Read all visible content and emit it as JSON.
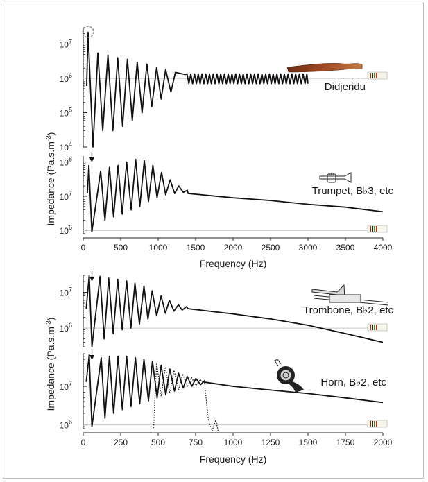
{
  "figure": {
    "ylabel_top": "Impedance (Pa.s.m",
    "ylabel_bottom": "Impedance (Pa.s.m",
    "ylabel_exponent": "-3",
    "ylabel_suffix": ")",
    "xlabel_top": "Frequency (Hz)",
    "xlabel_bottom": "Frequency (Hz)"
  },
  "chart_data": [
    {
      "type": "line",
      "panel": "didjeridu",
      "instrument_label": "Didjeridu",
      "icon": "didjeridu-icon",
      "yscale": "log",
      "ylim": [
        10000,
        30000000
      ],
      "xlim": [
        0,
        4000
      ],
      "y_ticks": [
        {
          "base": "10",
          "exp": "4",
          "value": 10000
        },
        {
          "base": "10",
          "exp": "5",
          "value": 100000
        },
        {
          "base": "10",
          "exp": "6",
          "value": 1000000
        },
        {
          "base": "10",
          "exp": "7",
          "value": 10000000
        }
      ],
      "series": [
        {
          "baseline": 1000000,
          "x_end": 3000,
          "f0": 65,
          "peaks": [
            [
              65,
              22000000
            ],
            [
              195,
              5500000
            ],
            [
              330,
              4800000
            ],
            [
              460,
              4000000
            ],
            [
              590,
              3600000
            ],
            [
              720,
              3000000
            ],
            [
              850,
              2600000
            ],
            [
              980,
              2100000
            ],
            [
              1100,
              1800000
            ],
            [
              1230,
              1500000
            ],
            [
              1360,
              1300000
            ]
          ],
          "troughs": [
            [
              130,
              10000
            ],
            [
              260,
              30000
            ],
            [
              395,
              30000
            ],
            [
              525,
              40000
            ],
            [
              655,
              60000
            ],
            [
              785,
              100000
            ],
            [
              915,
              150000
            ],
            [
              1040,
              250000
            ],
            [
              1170,
              400000
            ]
          ]
        }
      ],
      "markers": [
        {
          "kind": "dashed-circle",
          "x": 65
        }
      ]
    },
    {
      "type": "line",
      "panel": "trumpet",
      "instrument_label": "Trumpet, B♭3, etc",
      "icon": "trumpet-icon",
      "yscale": "log",
      "ylim": [
        800000,
        150000000
      ],
      "xlim": [
        0,
        4000
      ],
      "y_ticks": [
        {
          "base": "10",
          "exp": "6",
          "value": 1000000
        },
        {
          "base": "10",
          "exp": "7",
          "value": 10000000
        },
        {
          "base": "10",
          "exp": "8",
          "value": 100000000
        }
      ],
      "x_ticks": [
        0,
        500,
        1000,
        1500,
        2000,
        2500,
        3000,
        3500,
        4000
      ],
      "series": [
        {
          "baseline": 1000000,
          "x_end": 4000,
          "f0": 115,
          "tail": [
            [
              1400,
              12000000
            ],
            [
              2000,
              9000000
            ],
            [
              2500,
              7500000
            ],
            [
              3000,
              5800000
            ],
            [
              3500,
              4800000
            ],
            [
              4000,
              3500000
            ]
          ],
          "peaks": [
            [
              75,
              80000000
            ],
            [
              232,
              55000000
            ],
            [
              350,
              70000000
            ],
            [
              465,
              80000000
            ],
            [
              580,
              100000000
            ],
            [
              700,
              120000000
            ],
            [
              815,
              110000000
            ],
            [
              930,
              80000000
            ],
            [
              1045,
              50000000
            ],
            [
              1160,
              30000000
            ],
            [
              1275,
              20000000
            ],
            [
              1390,
              15000000
            ]
          ],
          "troughs": [
            [
              115,
              900000
            ],
            [
              290,
              2000000
            ],
            [
              405,
              2500000
            ],
            [
              520,
              3000000
            ],
            [
              640,
              4000000
            ],
            [
              755,
              5000000
            ],
            [
              870,
              7000000
            ],
            [
              985,
              9000000
            ],
            [
              1100,
              11000000
            ],
            [
              1220,
              12000000
            ],
            [
              1335,
              13000000
            ]
          ]
        }
      ],
      "markers": [
        {
          "kind": "arrow",
          "x": 115
        }
      ]
    },
    {
      "type": "line",
      "panel": "trombone",
      "instrument_label": "Trombone, B♭2, etc",
      "icon": "trombone-icon",
      "yscale": "log",
      "ylim": [
        300000,
        30000000
      ],
      "xlim": [
        0,
        2000
      ],
      "y_ticks": [
        {
          "base": "10",
          "exp": "6",
          "value": 1000000
        },
        {
          "base": "10",
          "exp": "7",
          "value": 10000000
        }
      ],
      "series": [
        {
          "baseline": 1000000,
          "x_end": 2000,
          "f0": 58,
          "tail": [
            [
              700,
              3500000
            ],
            [
              1000,
              2500000
            ],
            [
              1250,
              1800000
            ],
            [
              1500,
              1200000
            ],
            [
              1750,
              700000
            ],
            [
              2000,
              400000
            ]
          ],
          "peaks": [
            [
              40,
              30000000
            ],
            [
              112,
              28000000
            ],
            [
              170,
              25000000
            ],
            [
              230,
              23000000
            ],
            [
              290,
              21000000
            ],
            [
              345,
              18000000
            ],
            [
              405,
              15000000
            ],
            [
              460,
              11000000
            ],
            [
              520,
              8000000
            ],
            [
              575,
              6000000
            ],
            [
              635,
              4500000
            ],
            [
              690,
              4000000
            ]
          ],
          "troughs": [
            [
              58,
              300000
            ],
            [
              140,
              500000
            ],
            [
              200,
              700000
            ],
            [
              260,
              900000
            ],
            [
              318,
              1000000
            ],
            [
              375,
              1300000
            ],
            [
              432,
              1800000
            ],
            [
              490,
              2200000
            ],
            [
              548,
              2600000
            ],
            [
              605,
              3000000
            ],
            [
              660,
              3200000
            ]
          ]
        }
      ],
      "markers": [
        {
          "kind": "arrow",
          "x": 58
        }
      ]
    },
    {
      "type": "line",
      "panel": "horn",
      "instrument_label": "Horn, B♭2, etc",
      "icon": "horn-icon",
      "yscale": "log",
      "ylim": [
        800000,
        70000000
      ],
      "xlim": [
        0,
        2000
      ],
      "y_ticks": [
        {
          "base": "10",
          "exp": "6",
          "value": 1000000
        },
        {
          "base": "10",
          "exp": "7",
          "value": 10000000
        }
      ],
      "x_ticks": [
        0,
        250,
        500,
        750,
        1000,
        1250,
        1500,
        1750,
        2000
      ],
      "series": [
        {
          "style": "solid",
          "baseline": 1000000,
          "x_end": 2000,
          "f0": 58,
          "tail": [
            [
              800,
              13000000
            ],
            [
              1000,
              10000000
            ],
            [
              1250,
              8000000
            ],
            [
              1500,
              6500000
            ],
            [
              1750,
              5000000
            ],
            [
              2000,
              3800000
            ]
          ],
          "peaks": [
            [
              40,
              65000000
            ],
            [
              120,
              55000000
            ],
            [
              175,
              60000000
            ],
            [
              232,
              60000000
            ],
            [
              290,
              60000000
            ],
            [
              348,
              55000000
            ],
            [
              405,
              50000000
            ],
            [
              462,
              45000000
            ],
            [
              520,
              35000000
            ],
            [
              578,
              28000000
            ],
            [
              636,
              22000000
            ],
            [
              694,
              18000000
            ],
            [
              752,
              16000000
            ],
            [
              810,
              14000000
            ]
          ],
          "troughs": [
            [
              58,
              900000
            ],
            [
              145,
              1500000
            ],
            [
              203,
              2000000
            ],
            [
              261,
              2500000
            ],
            [
              319,
              3000000
            ],
            [
              377,
              3500000
            ],
            [
              435,
              4200000
            ],
            [
              493,
              5000000
            ],
            [
              551,
              6000000
            ],
            [
              609,
              7500000
            ],
            [
              667,
              9000000
            ],
            [
              725,
              10000000
            ],
            [
              783,
              11000000
            ]
          ]
        },
        {
          "style": "dotted",
          "baseline": 1000000,
          "x_end": 900,
          "f0": 58,
          "peaks": [
            [
              490,
              40000000
            ],
            [
              548,
              32000000
            ],
            [
              606,
              26000000
            ],
            [
              664,
              21000000
            ],
            [
              722,
              17000000
            ],
            [
              780,
              15000000
            ]
          ],
          "troughs": [
            [
              520,
              5500000
            ],
            [
              578,
              6500000
            ],
            [
              636,
              8000000
            ],
            [
              694,
              9500000
            ],
            [
              752,
              10500000
            ],
            [
              810,
              11500000
            ]
          ]
        }
      ],
      "markers": [
        {
          "kind": "arrow",
          "x": 58
        }
      ]
    }
  ]
}
